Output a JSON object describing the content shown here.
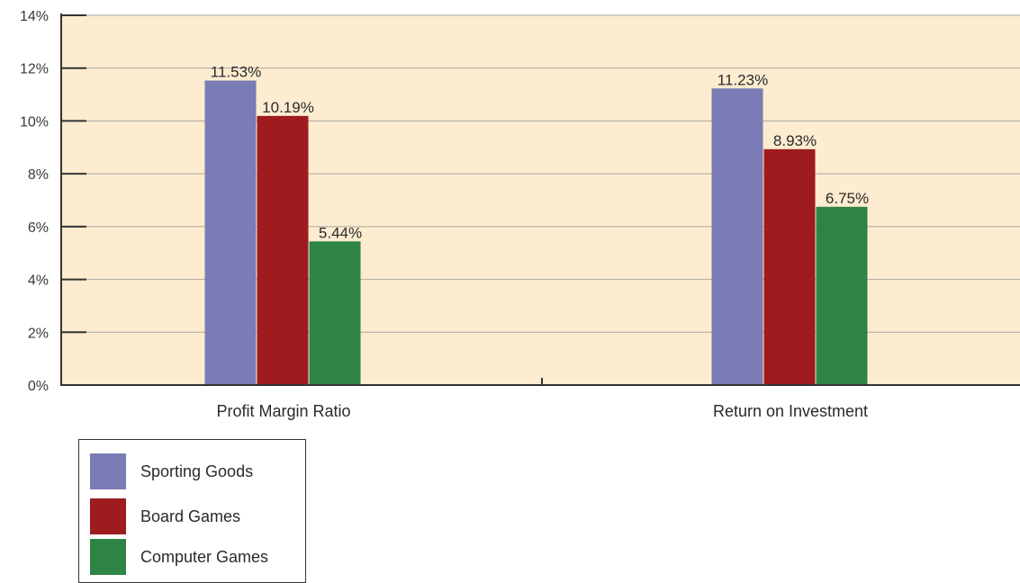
{
  "chart_data": {
    "type": "bar",
    "categories": [
      "Profit Margin Ratio",
      "Return on Investment"
    ],
    "series": [
      {
        "name": "Sporting Goods",
        "values": [
          11.53,
          11.23
        ],
        "labels": [
          "11.53%",
          "11.23%"
        ],
        "color": "#7b7bb5"
      },
      {
        "name": "Board Games",
        "values": [
          10.19,
          8.93
        ],
        "labels": [
          "10.19%",
          "8.93%"
        ],
        "color": "#9e1b1e"
      },
      {
        "name": "Computer Games",
        "values": [
          5.44,
          6.75
        ],
        "labels": [
          "5.44%",
          "6.75%"
        ],
        "color": "#2e8444"
      }
    ],
    "yticks": [
      "0%",
      "2%",
      "4%",
      "6%",
      "8%",
      "10%",
      "12%",
      "14%"
    ],
    "ylim": [
      0,
      14
    ],
    "grid": true,
    "legend_position": "bottom-left",
    "background": "#fdecd0"
  }
}
